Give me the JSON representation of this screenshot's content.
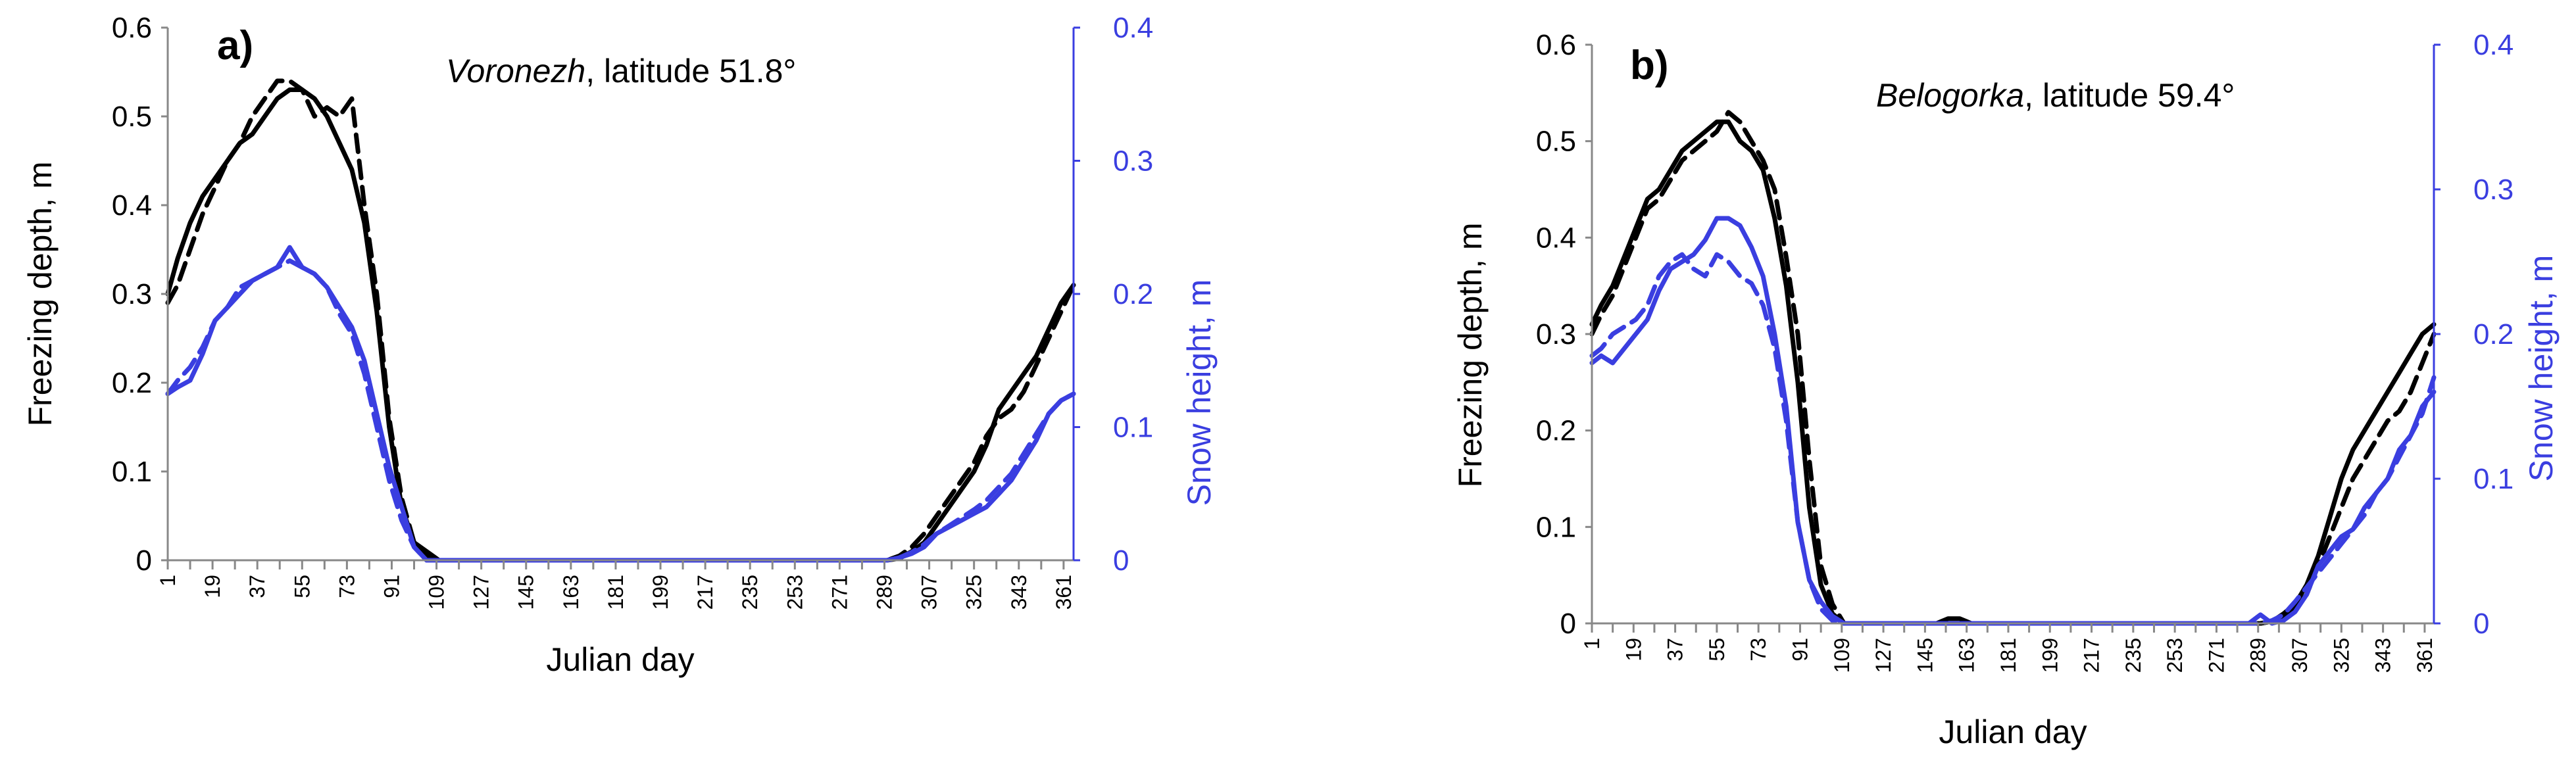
{
  "chart_data": [
    {
      "type": "line",
      "panel_label": "a)",
      "title_site": "Voronezh",
      "title_rest": ", latitude 51.8°",
      "xlabel": "Julian day",
      "ylabel_left": "Freezing depth, m",
      "ylabel_right": "Snow height, m",
      "xlim": [
        1,
        365
      ],
      "ylim_left": [
        0,
        0.6
      ],
      "ylim_right": [
        0,
        0.4
      ],
      "yticks_left": [
        "0",
        "0.1",
        "0.2",
        "0.3",
        "0.4",
        "0.5",
        "0.6"
      ],
      "yticks_right": [
        "0",
        "0.1",
        "0.2",
        "0.3",
        "0.4"
      ],
      "xticks": [
        "1",
        "19",
        "37",
        "55",
        "73",
        "91",
        "109",
        "127",
        "145",
        "163",
        "181",
        "199",
        "217",
        "235",
        "253",
        "271",
        "289",
        "307",
        "325",
        "343",
        "361"
      ],
      "colors": {
        "freezing": "#000000",
        "snow": "#3a3ee0",
        "right_axis": "#3a3ee0"
      },
      "series": [
        {
          "name": "Freezing depth (solid)",
          "axis": "left",
          "style": "solid",
          "x": [
            1,
            5,
            10,
            15,
            20,
            25,
            30,
            35,
            40,
            45,
            50,
            55,
            60,
            65,
            70,
            75,
            80,
            85,
            90,
            95,
            100,
            105,
            110,
            115,
            290,
            295,
            300,
            305,
            310,
            315,
            320,
            325,
            330,
            335,
            340,
            345,
            350,
            355,
            360,
            365
          ],
          "values": [
            0.3,
            0.34,
            0.38,
            0.41,
            0.43,
            0.45,
            0.47,
            0.48,
            0.5,
            0.52,
            0.53,
            0.53,
            0.52,
            0.5,
            0.47,
            0.44,
            0.38,
            0.28,
            0.15,
            0.06,
            0.02,
            0.01,
            0,
            0,
            0,
            0.002,
            0.01,
            0.02,
            0.04,
            0.06,
            0.08,
            0.1,
            0.13,
            0.17,
            0.19,
            0.21,
            0.23,
            0.26,
            0.29,
            0.31
          ]
        },
        {
          "name": "Freezing depth (dashed)",
          "axis": "left",
          "style": "dashed",
          "x": [
            1,
            5,
            10,
            15,
            20,
            25,
            30,
            35,
            40,
            45,
            50,
            55,
            60,
            65,
            70,
            75,
            80,
            85,
            90,
            95,
            100,
            105,
            110,
            115,
            290,
            295,
            300,
            305,
            310,
            315,
            320,
            325,
            330,
            335,
            340,
            345,
            350,
            355,
            360,
            365
          ],
          "values": [
            0.29,
            0.31,
            0.35,
            0.39,
            0.42,
            0.45,
            0.47,
            0.5,
            0.52,
            0.54,
            0.54,
            0.53,
            0.5,
            0.51,
            0.5,
            0.52,
            0.4,
            0.3,
            0.16,
            0.07,
            0.02,
            0.005,
            0,
            0,
            0,
            0.005,
            0.015,
            0.03,
            0.05,
            0.07,
            0.09,
            0.11,
            0.14,
            0.16,
            0.17,
            0.19,
            0.22,
            0.25,
            0.28,
            0.31
          ]
        },
        {
          "name": "Snow height (solid)",
          "axis": "right",
          "style": "solid",
          "x": [
            1,
            5,
            10,
            15,
            20,
            25,
            30,
            35,
            40,
            45,
            50,
            55,
            60,
            65,
            70,
            75,
            80,
            85,
            90,
            95,
            100,
            105,
            110,
            115,
            290,
            295,
            300,
            305,
            310,
            315,
            320,
            325,
            330,
            335,
            340,
            345,
            350,
            355,
            360,
            365
          ],
          "values": [
            0.125,
            0.13,
            0.135,
            0.155,
            0.18,
            0.19,
            0.2,
            0.21,
            0.215,
            0.22,
            0.235,
            0.22,
            0.215,
            0.205,
            0.19,
            0.175,
            0.15,
            0.11,
            0.07,
            0.04,
            0.01,
            0,
            0,
            0,
            0,
            0.002,
            0.005,
            0.01,
            0.02,
            0.025,
            0.03,
            0.035,
            0.04,
            0.05,
            0.06,
            0.075,
            0.09,
            0.11,
            0.12,
            0.125
          ]
        },
        {
          "name": "Snow height (dashed)",
          "axis": "right",
          "style": "dashed",
          "x": [
            1,
            5,
            10,
            15,
            20,
            25,
            30,
            35,
            40,
            45,
            50,
            55,
            60,
            65,
            70,
            75,
            80,
            85,
            90,
            95,
            100,
            105,
            110,
            115,
            290,
            295,
            300,
            305,
            310,
            315,
            320,
            325,
            330,
            335,
            340,
            345,
            350,
            355,
            360,
            365
          ],
          "values": [
            0.125,
            0.135,
            0.145,
            0.16,
            0.18,
            0.19,
            0.205,
            0.21,
            0.215,
            0.22,
            0.225,
            0.22,
            0.215,
            0.205,
            0.185,
            0.17,
            0.14,
            0.1,
            0.06,
            0.03,
            0.01,
            0,
            0,
            0,
            0,
            0.002,
            0.006,
            0.012,
            0.02,
            0.026,
            0.032,
            0.038,
            0.045,
            0.055,
            0.065,
            0.08,
            0.095,
            0.11,
            0.12,
            0.125
          ]
        }
      ]
    },
    {
      "type": "line",
      "panel_label": "b)",
      "title_site": "Belogorka",
      "title_rest": ", latitude 59.4°",
      "xlabel": "Julian day",
      "ylabel_left": "Freezing depth, m",
      "ylabel_right": "Snow height, m",
      "xlim": [
        1,
        365
      ],
      "ylim_left": [
        0,
        0.6
      ],
      "ylim_right": [
        0,
        0.4
      ],
      "yticks_left": [
        "0",
        "0.1",
        "0.2",
        "0.3",
        "0.4",
        "0.5",
        "0.6"
      ],
      "yticks_right": [
        "0",
        "0.1",
        "0.2",
        "0.3",
        "0.4"
      ],
      "xticks": [
        "1",
        "19",
        "37",
        "55",
        "73",
        "91",
        "109",
        "127",
        "145",
        "163",
        "181",
        "199",
        "217",
        "235",
        "253",
        "271",
        "289",
        "307",
        "325",
        "343",
        "361"
      ],
      "colors": {
        "freezing": "#000000",
        "snow": "#3a3ee0",
        "right_axis": "#3a3ee0"
      },
      "series": [
        {
          "name": "Freezing depth (solid)",
          "axis": "left",
          "style": "solid",
          "x": [
            1,
            5,
            10,
            15,
            20,
            25,
            30,
            35,
            40,
            45,
            50,
            55,
            60,
            65,
            70,
            75,
            80,
            85,
            90,
            95,
            100,
            105,
            110,
            115,
            150,
            155,
            160,
            165,
            290,
            295,
            300,
            305,
            310,
            315,
            320,
            325,
            330,
            335,
            340,
            345,
            350,
            355,
            360,
            365
          ],
          "values": [
            0.31,
            0.33,
            0.35,
            0.38,
            0.41,
            0.44,
            0.45,
            0.47,
            0.49,
            0.5,
            0.51,
            0.52,
            0.52,
            0.5,
            0.49,
            0.47,
            0.42,
            0.35,
            0.25,
            0.12,
            0.04,
            0.01,
            0,
            0,
            0,
            0.005,
            0.005,
            0,
            0,
            0.002,
            0.01,
            0.02,
            0.04,
            0.07,
            0.11,
            0.15,
            0.18,
            0.2,
            0.22,
            0.24,
            0.26,
            0.28,
            0.3,
            0.31
          ]
        },
        {
          "name": "Freezing depth (dashed)",
          "axis": "left",
          "style": "dashed",
          "x": [
            1,
            5,
            10,
            15,
            20,
            25,
            30,
            35,
            40,
            45,
            50,
            55,
            60,
            65,
            70,
            75,
            80,
            85,
            90,
            95,
            100,
            105,
            110,
            115,
            290,
            295,
            300,
            305,
            310,
            315,
            320,
            325,
            330,
            335,
            340,
            345,
            350,
            355,
            360,
            365
          ],
          "values": [
            0.3,
            0.32,
            0.34,
            0.37,
            0.4,
            0.43,
            0.44,
            0.46,
            0.48,
            0.49,
            0.5,
            0.51,
            0.53,
            0.52,
            0.5,
            0.48,
            0.45,
            0.38,
            0.3,
            0.17,
            0.06,
            0.02,
            0,
            0,
            0,
            0.002,
            0.008,
            0.015,
            0.03,
            0.06,
            0.09,
            0.12,
            0.15,
            0.17,
            0.19,
            0.21,
            0.22,
            0.24,
            0.27,
            0.3
          ]
        },
        {
          "name": "Snow height (solid)",
          "axis": "right",
          "style": "solid",
          "x": [
            1,
            5,
            10,
            15,
            20,
            25,
            30,
            35,
            40,
            45,
            50,
            55,
            60,
            65,
            70,
            75,
            80,
            85,
            90,
            95,
            100,
            105,
            110,
            115,
            285,
            290,
            295,
            300,
            305,
            310,
            315,
            320,
            325,
            330,
            335,
            340,
            345,
            350,
            355,
            360,
            365
          ],
          "values": [
            0.18,
            0.185,
            0.18,
            0.19,
            0.2,
            0.21,
            0.23,
            0.245,
            0.25,
            0.255,
            0.265,
            0.28,
            0.28,
            0.275,
            0.26,
            0.24,
            0.2,
            0.15,
            0.07,
            0.03,
            0.015,
            0.005,
            0,
            0,
            0,
            0.006,
            0,
            0.002,
            0.008,
            0.02,
            0.04,
            0.05,
            0.06,
            0.065,
            0.08,
            0.09,
            0.1,
            0.12,
            0.13,
            0.15,
            0.16
          ]
        },
        {
          "name": "Snow height (dashed)",
          "axis": "right",
          "style": "dashed",
          "x": [
            1,
            5,
            10,
            15,
            20,
            25,
            30,
            35,
            40,
            45,
            50,
            55,
            60,
            65,
            70,
            75,
            80,
            85,
            90,
            95,
            100,
            105,
            110,
            115,
            290,
            295,
            300,
            305,
            310,
            315,
            320,
            325,
            330,
            335,
            340,
            345,
            350,
            355,
            360,
            365
          ],
          "values": [
            0.185,
            0.19,
            0.2,
            0.205,
            0.21,
            0.22,
            0.24,
            0.25,
            0.255,
            0.245,
            0.24,
            0.255,
            0.25,
            0.24,
            0.235,
            0.22,
            0.19,
            0.14,
            0.07,
            0.03,
            0.01,
            0.002,
            0,
            0,
            0,
            0.002,
            0.006,
            0.015,
            0.025,
            0.035,
            0.045,
            0.055,
            0.065,
            0.075,
            0.09,
            0.1,
            0.115,
            0.13,
            0.145,
            0.17
          ]
        }
      ]
    }
  ]
}
